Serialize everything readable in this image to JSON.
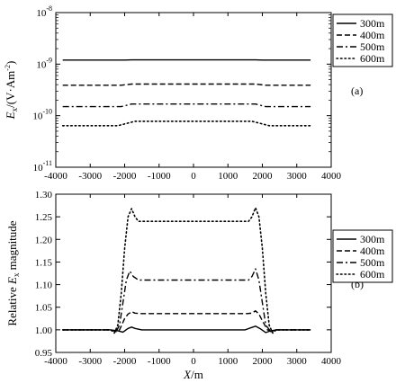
{
  "chart_data": [
    {
      "type": "line",
      "panel_label": "(a)",
      "ylabel_main": "E",
      "ylabel_sub": "x",
      "ylabel_rest": "/(V·Am",
      "ylabel_sup": "-2",
      "ylabel_end": ")",
      "yscale": "log",
      "ylim": [
        1e-11,
        1e-08
      ],
      "xlim": [
        -4000,
        4000
      ],
      "x_ticks": [
        "-4000",
        "-3000",
        "-2000",
        "-1000",
        "0",
        "1000",
        "2000",
        "3000",
        "4000"
      ],
      "y_ticks": [
        {
          "base": "10",
          "exp": "-8"
        },
        {
          "base": "10",
          "exp": "-9"
        },
        {
          "base": "10",
          "exp": "-10"
        },
        {
          "base": "10",
          "exp": "-11"
        }
      ],
      "legend_position": "top-right",
      "series": [
        {
          "name": "300m",
          "dash": "solid",
          "x": [
            -3800,
            -2000,
            -1800,
            1800,
            2000,
            3400
          ],
          "y": [
            1.2e-09,
            1.2e-09,
            1.21e-09,
            1.21e-09,
            1.2e-09,
            1.2e-09
          ]
        },
        {
          "name": "400m",
          "dash": "dashed",
          "x": [
            -3800,
            -2100,
            -1800,
            1800,
            2100,
            3400
          ],
          "y": [
            3.9e-10,
            3.9e-10,
            4.1e-10,
            4.1e-10,
            3.9e-10,
            3.9e-10
          ]
        },
        {
          "name": "500m",
          "dash": "dashdot",
          "x": [
            -3800,
            -2100,
            -1800,
            1800,
            2100,
            3400
          ],
          "y": [
            1.5e-10,
            1.5e-10,
            1.68e-10,
            1.68e-10,
            1.5e-10,
            1.5e-10
          ]
        },
        {
          "name": "600m",
          "dash": "dotted",
          "x": [
            -3800,
            -2200,
            -1700,
            1700,
            2200,
            3400
          ],
          "y": [
            6.4e-11,
            6.4e-11,
            7.8e-11,
            7.8e-11,
            6.4e-11,
            6.4e-11
          ]
        }
      ]
    },
    {
      "type": "line",
      "panel_label": "(b)",
      "ylabel_main": "Relative ",
      "ylabel_sub_main": "E",
      "ylabel_sub": "x",
      "ylabel_rest": " magnitude",
      "xlabel_main": "X",
      "xlabel_rest": "/m",
      "ylim": [
        0.95,
        1.3
      ],
      "xlim": [
        -4000,
        4000
      ],
      "x_ticks": [
        "-4000",
        "-3000",
        "-2000",
        "-1000",
        "0",
        "1000",
        "2000",
        "3000",
        "4000"
      ],
      "y_ticks": [
        "1.30",
        "1.25",
        "1.20",
        "1.15",
        "1.10",
        "1.05",
        "1.00",
        "0.95"
      ],
      "legend_position": "top-right",
      "series": [
        {
          "name": "300m",
          "dash": "solid",
          "x": [
            -3800,
            -2400,
            -2200,
            -2050,
            -1900,
            -1800,
            -1700,
            -1500,
            1500,
            1650,
            1800,
            1950,
            2100,
            2250,
            2400,
            3400
          ],
          "y": [
            1.0,
            1.0,
            0.998,
            0.995,
            1.003,
            1.006,
            1.003,
            1.0,
            1.0,
            1.004,
            1.008,
            1.002,
            0.994,
            0.998,
            1.0,
            1.0
          ]
        },
        {
          "name": "400m",
          "dash": "dashed",
          "x": [
            -3800,
            -2400,
            -2250,
            -2150,
            -2000,
            -1900,
            -1800,
            -1700,
            -1550,
            1550,
            1700,
            1800,
            1900,
            2000,
            2150,
            2250,
            2400,
            3400
          ],
          "y": [
            1.0,
            1.0,
            0.996,
            1.0,
            1.025,
            1.035,
            1.04,
            1.037,
            1.036,
            1.036,
            1.037,
            1.042,
            1.035,
            1.02,
            1.0,
            0.996,
            1.0,
            1.0
          ]
        },
        {
          "name": "500m",
          "dash": "dashdot",
          "x": [
            -3800,
            -2400,
            -2250,
            -2150,
            -2050,
            -1950,
            -1850,
            -1750,
            -1600,
            1600,
            1700,
            1800,
            1900,
            2000,
            2100,
            2250,
            2400,
            3400
          ],
          "y": [
            1.0,
            1.0,
            0.996,
            1.01,
            1.06,
            1.11,
            1.13,
            1.118,
            1.11,
            1.11,
            1.118,
            1.135,
            1.11,
            1.06,
            1.01,
            0.996,
            1.0,
            1.0
          ]
        },
        {
          "name": "600m",
          "dash": "dotted",
          "x": [
            -3800,
            -2400,
            -2300,
            -2200,
            -2100,
            -2000,
            -1900,
            -1800,
            -1700,
            -1600,
            1600,
            1700,
            1800,
            1900,
            2000,
            2100,
            2200,
            2300,
            2400,
            3400
          ],
          "y": [
            1.0,
            1.0,
            0.993,
            1.01,
            1.08,
            1.18,
            1.25,
            1.268,
            1.25,
            1.24,
            1.24,
            1.25,
            1.27,
            1.25,
            1.18,
            1.08,
            1.01,
            0.993,
            1.0,
            1.0
          ]
        }
      ]
    }
  ]
}
